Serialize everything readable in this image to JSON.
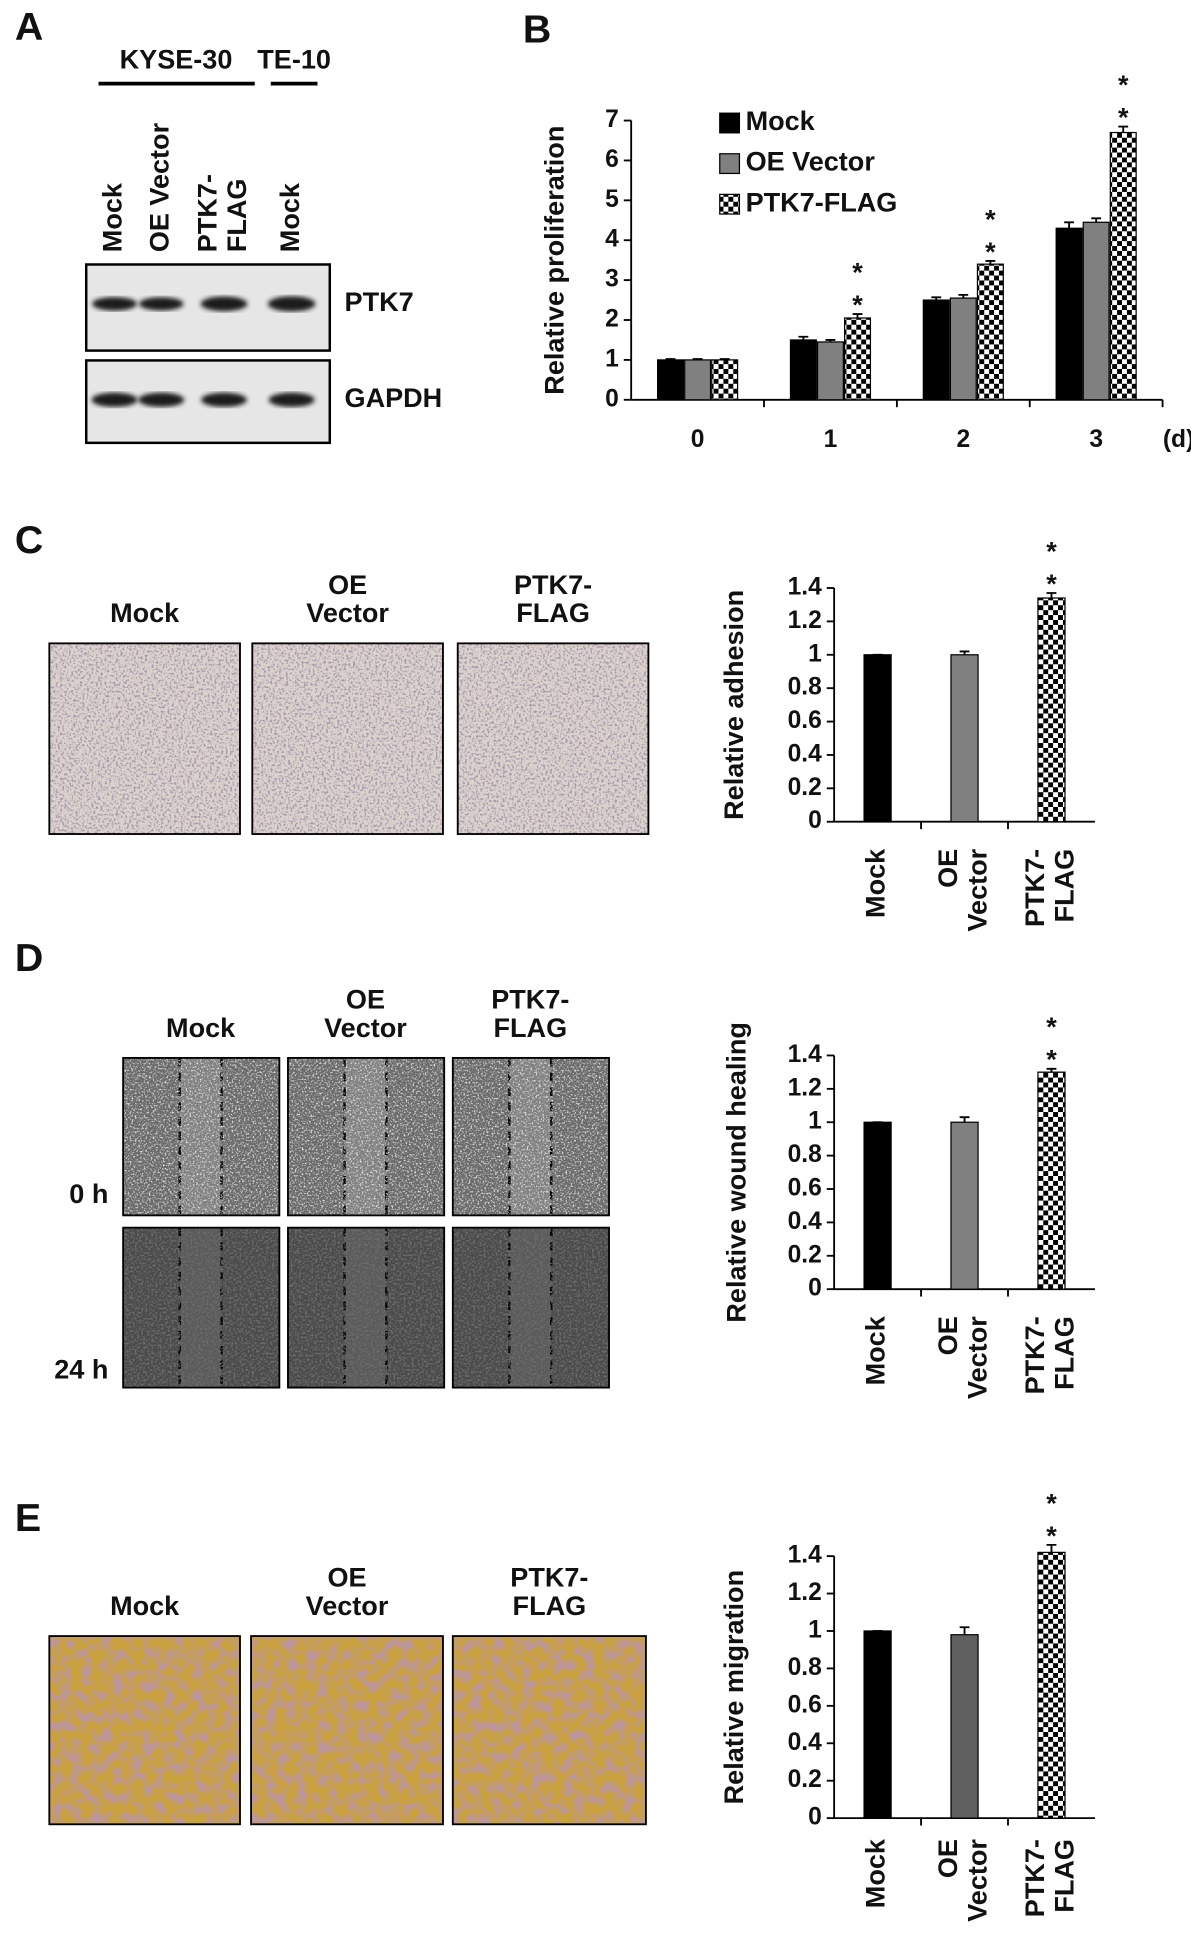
{
  "figure": {
    "panel_labels": [
      "A",
      "B",
      "C",
      "D",
      "E"
    ],
    "blot": {
      "cell_lines": [
        "KYSE-30",
        "TE-10"
      ],
      "lanes": [
        [
          "Mock"
        ],
        [
          "OE Vector"
        ],
        [
          "PTK7-",
          "FLAG"
        ],
        [
          "Mock"
        ]
      ],
      "proteins": [
        "PTK7",
        "GAPDH"
      ]
    },
    "adhesion_images": {
      "titles": [
        [
          "Mock"
        ],
        [
          "OE",
          "Vector"
        ],
        [
          "PTK7-",
          "FLAG"
        ]
      ]
    },
    "wound_images": {
      "titles": [
        [
          "Mock"
        ],
        [
          "OE",
          "Vector"
        ],
        [
          "PTK7-",
          "FLAG"
        ]
      ],
      "timepoints": [
        "0 h",
        "24 h"
      ]
    },
    "migration_images": {
      "titles": [
        [
          "Mock"
        ],
        [
          "OE",
          "Vector"
        ],
        [
          "PTK7-",
          "FLAG"
        ]
      ]
    }
  },
  "chart_data": [
    {
      "type": "bar",
      "y_label": "Relative proliferation",
      "x_unit": "(d)",
      "categories": [
        "0",
        "1",
        "2",
        "3"
      ],
      "ylim": [
        0,
        7
      ],
      "yticks": [
        0,
        1,
        2,
        3,
        4,
        5,
        6,
        7
      ],
      "series": [
        {
          "name": "Mock",
          "color": "#000000",
          "values": [
            1,
            1.5,
            2.5,
            4.3
          ],
          "errors": [
            0.02,
            0.08,
            0.07,
            0.15
          ]
        },
        {
          "name": "OE Vector",
          "color": "#808080",
          "values": [
            1,
            1.45,
            2.55,
            4.45
          ],
          "errors": [
            0.02,
            0.05,
            0.08,
            0.1
          ]
        },
        {
          "name": "PTK7-FLAG",
          "color": "#ffffff",
          "pattern": "checkerboard",
          "values": [
            1,
            2.05,
            3.4,
            6.7
          ],
          "errors": [
            0.02,
            0.1,
            0.08,
            0.15
          ],
          "significance": [
            null,
            "**",
            "**",
            "**"
          ]
        }
      ]
    },
    {
      "type": "bar",
      "y_label": "Relative adhesion",
      "categories": [
        [
          "Mock"
        ],
        [
          "OE",
          "Vector"
        ],
        [
          "PTK7-",
          "FLAG"
        ]
      ],
      "values": [
        1,
        1.0,
        1.34
      ],
      "errors": [
        0,
        0.02,
        0.03
      ],
      "colors": [
        "#000000",
        "#808080",
        "#ffffff"
      ],
      "patterns": [
        null,
        null,
        "checkerboard"
      ],
      "significance": [
        null,
        null,
        "**"
      ],
      "ylim": [
        0,
        1.4
      ],
      "yticks": [
        0,
        0.2,
        0.4,
        0.6,
        0.8,
        1,
        1.2,
        1.4
      ]
    },
    {
      "type": "bar",
      "y_label": "Relative wound healing",
      "categories": [
        [
          "Mock"
        ],
        [
          "OE",
          "Vector"
        ],
        [
          "PTK7-",
          "FLAG"
        ]
      ],
      "values": [
        1,
        1.0,
        1.3
      ],
      "errors": [
        0,
        0.03,
        0.02
      ],
      "colors": [
        "#000000",
        "#808080",
        "#ffffff"
      ],
      "patterns": [
        null,
        null,
        "checkerboard"
      ],
      "significance": [
        null,
        null,
        "**"
      ],
      "ylim": [
        0,
        1.4
      ],
      "yticks": [
        0,
        0.2,
        0.4,
        0.6,
        0.8,
        1,
        1.2,
        1.4
      ]
    },
    {
      "type": "bar",
      "y_label": "Relative migration",
      "categories": [
        [
          "Mock"
        ],
        [
          "OE",
          "Vector"
        ],
        [
          "PTK7-",
          "FLAG"
        ]
      ],
      "values": [
        1,
        0.98,
        1.42
      ],
      "errors": [
        0,
        0.04,
        0.04
      ],
      "colors": [
        "#000000",
        "#606060",
        "#ffffff"
      ],
      "patterns": [
        null,
        null,
        "checkerboard"
      ],
      "significance": [
        null,
        null,
        "**"
      ],
      "ylim": [
        0,
        1.4
      ],
      "yticks": [
        0,
        0.2,
        0.4,
        0.6,
        0.8,
        1,
        1.2,
        1.4
      ]
    }
  ]
}
